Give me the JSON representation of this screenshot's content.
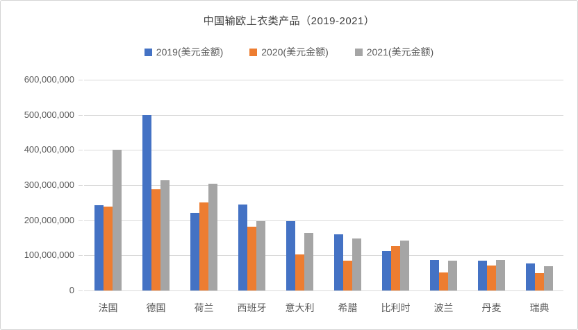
{
  "title": "中国输欧上衣类产品（2019-2021）",
  "colors": {
    "series_2019": "#4472C4",
    "series_2020": "#ED7D31",
    "series_2021": "#A5A5A5",
    "gridline": "#D9D9D9",
    "text": "#595959",
    "title_text": "#404040"
  },
  "chart_data": {
    "type": "bar",
    "title": "中国输欧上衣类产品（2019-2021）",
    "xlabel": "",
    "ylabel": "",
    "categories": [
      "法国",
      "德国",
      "荷兰",
      "西班牙",
      "意大利",
      "希腊",
      "比利时",
      "波兰",
      "丹麦",
      "瑞典"
    ],
    "series": [
      {
        "name": "2019(美元金额)",
        "color": "#4472C4",
        "values": [
          242000000,
          500000000,
          222000000,
          245000000,
          198000000,
          160000000,
          112000000,
          87000000,
          84000000,
          76000000
        ]
      },
      {
        "name": "2020(美元金额)",
        "color": "#ED7D31",
        "values": [
          238000000,
          289000000,
          250000000,
          182000000,
          103000000,
          85000000,
          127000000,
          52000000,
          72000000,
          49000000
        ]
      },
      {
        "name": "2021(美元金额)",
        "color": "#A5A5A5",
        "values": [
          400000000,
          313000000,
          304000000,
          198000000,
          163000000,
          148000000,
          143000000,
          84000000,
          86000000,
          70000000
        ]
      }
    ],
    "ylim": [
      0,
      600000000
    ],
    "ytick_step": 100000000,
    "ytick_labels": [
      "0",
      "100,000,000",
      "200,000,000",
      "300,000,000",
      "400,000,000",
      "500,000,000",
      "600,000,000"
    ],
    "grid": true,
    "legend_position": "top"
  }
}
